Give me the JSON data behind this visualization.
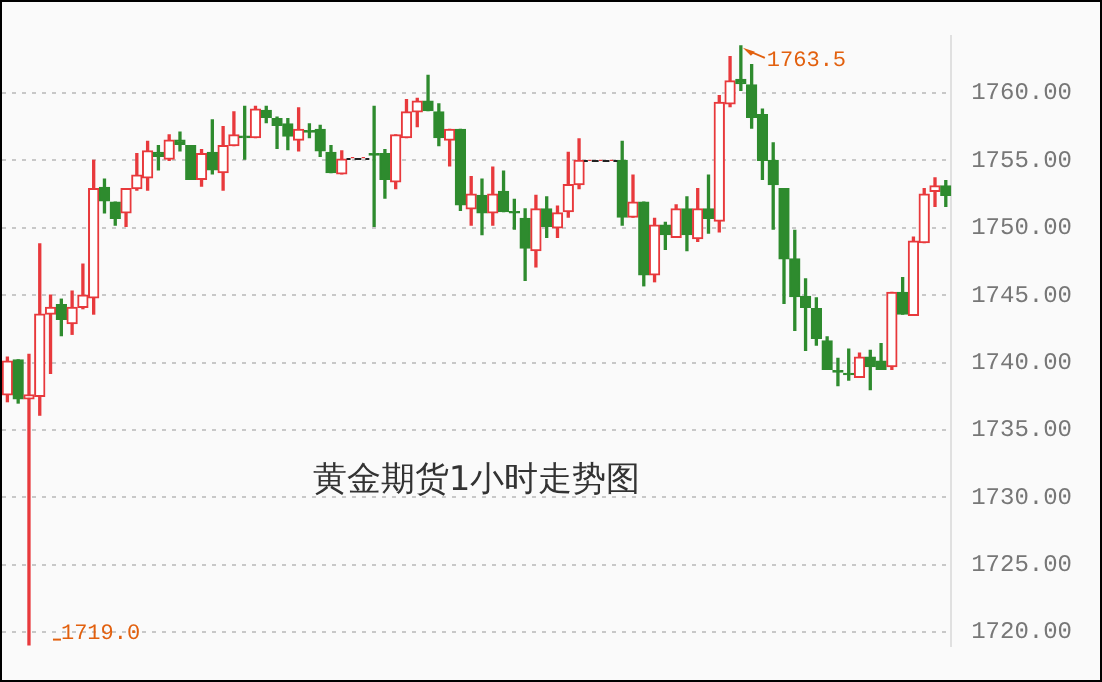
{
  "chart_data": {
    "type": "candlestick",
    "categories": [
      null,
      null,
      null,
      null,
      null,
      null,
      null,
      null,
      null,
      null,
      null,
      null,
      null,
      null,
      null,
      null,
      null,
      null,
      null,
      null,
      null,
      null,
      null,
      null,
      null,
      null,
      null,
      null,
      null,
      null,
      null,
      null,
      null,
      null,
      null,
      null,
      null,
      null,
      null,
      null,
      null,
      null,
      null,
      null,
      null,
      null,
      null,
      null,
      null,
      null,
      null,
      null,
      null,
      null,
      null,
      null,
      null,
      null,
      null,
      null,
      null,
      null,
      null,
      null,
      null,
      null,
      null,
      null,
      null,
      null,
      null,
      null,
      null,
      null,
      null,
      null,
      null,
      null,
      null,
      null,
      null,
      null,
      null,
      null,
      null,
      null,
      null,
      null
    ],
    "ohlc": [
      [
        1737.6,
        1740.4,
        1737.1,
        1740.1
      ],
      [
        1740.2,
        1740.2,
        1737.0,
        1737.3
      ],
      [
        1737.3,
        1740.6,
        1719.0,
        1737.6
      ],
      [
        1737.5,
        1748.8,
        1736.1,
        1743.6
      ],
      [
        1743.6,
        1745.0,
        1739.2,
        1744.1
      ],
      [
        1744.3,
        1744.7,
        1742.0,
        1743.2
      ],
      [
        1742.9,
        1745.3,
        1742.1,
        1744.1
      ],
      [
        1744.1,
        1747.3,
        1744.0,
        1745.0
      ],
      [
        1744.8,
        1755.0,
        1743.6,
        1752.9
      ],
      [
        1753.0,
        1753.6,
        1751.1,
        1752.0
      ],
      [
        1751.9,
        1751.9,
        1750.2,
        1750.7
      ],
      [
        1751.1,
        1752.9,
        1750.1,
        1752.9
      ],
      [
        1752.9,
        1755.5,
        1752.8,
        1753.9
      ],
      [
        1753.7,
        1756.4,
        1752.8,
        1755.7
      ],
      [
        1755.6,
        1756.1,
        1754.3,
        1755.3
      ],
      [
        1755.1,
        1756.9,
        1755.0,
        1756.5
      ],
      [
        1756.5,
        1757.1,
        1755.7,
        1756.2
      ],
      [
        1756.1,
        1756.1,
        1753.6,
        1753.6
      ],
      [
        1753.6,
        1755.8,
        1753.1,
        1755.5
      ],
      [
        1755.6,
        1758.0,
        1754.0,
        1754.3
      ],
      [
        1754.1,
        1757.5,
        1752.8,
        1756.1
      ],
      [
        1756.1,
        1758.6,
        1756.1,
        1756.9
      ],
      [
        1756.8,
        1759.0,
        1755.1,
        1756.7
      ],
      [
        1756.7,
        1759.0,
        1756.7,
        1758.8
      ],
      [
        1758.7,
        1759.0,
        1757.8,
        1758.2
      ],
      [
        1758.1,
        1758.2,
        1755.9,
        1757.6
      ],
      [
        1757.7,
        1758.1,
        1755.8,
        1756.8
      ],
      [
        1756.5,
        1758.9,
        1755.7,
        1757.3
      ],
      [
        1757.2,
        1757.7,
        1756.7,
        1757.1
      ],
      [
        1757.3,
        1757.6,
        1755.3,
        1755.7
      ],
      [
        1755.6,
        1756.1,
        1754.1,
        1754.1
      ],
      [
        1754.0,
        1755.7,
        1754.0,
        1755.1
      ],
      [
        1755.2,
        1755.2,
        1755.2,
        1755.2
      ],
      [
        1755.2,
        1755.2,
        1755.2,
        1755.2
      ],
      [
        1755.5,
        1759.0,
        1750.1,
        1755.4
      ],
      [
        1755.5,
        1755.8,
        1752.2,
        1753.6
      ],
      [
        1753.4,
        1756.9,
        1752.9,
        1756.9
      ],
      [
        1756.7,
        1759.5,
        1756.7,
        1758.6
      ],
      [
        1758.6,
        1759.6,
        1757.5,
        1759.4
      ],
      [
        1759.4,
        1761.3,
        1758.7,
        1758.7
      ],
      [
        1758.6,
        1759.2,
        1756.1,
        1756.7
      ],
      [
        1756.5,
        1757.3,
        1754.6,
        1757.3
      ],
      [
        1757.3,
        1757.3,
        1751.3,
        1751.7
      ],
      [
        1751.4,
        1753.8,
        1750.2,
        1752.5
      ],
      [
        1752.4,
        1753.6,
        1749.5,
        1751.1
      ],
      [
        1751.1,
        1754.5,
        1750.2,
        1752.5
      ],
      [
        1752.7,
        1754.2,
        1751.2,
        1751.2
      ],
      [
        1751.2,
        1752.1,
        1749.9,
        1751.1
      ],
      [
        1750.7,
        1751.4,
        1746.1,
        1748.5
      ],
      [
        1748.3,
        1752.4,
        1747.1,
        1751.4
      ],
      [
        1751.4,
        1752.3,
        1749.3,
        1750.1
      ],
      [
        1750.0,
        1751.6,
        1749.3,
        1751.1
      ],
      [
        1751.2,
        1755.6,
        1750.8,
        1753.2
      ],
      [
        1753.2,
        1756.6,
        1752.9,
        1755.0
      ],
      [
        1755.0,
        1755.0,
        1755.0,
        1755.0
      ],
      [
        1755.0,
        1755.0,
        1755.0,
        1755.0
      ],
      [
        1755.0,
        1755.0,
        1755.0,
        1755.0
      ],
      [
        1755.0,
        1756.4,
        1750.2,
        1750.8
      ],
      [
        1750.8,
        1753.9,
        1750.8,
        1751.9
      ],
      [
        1751.9,
        1751.9,
        1745.7,
        1746.5
      ],
      [
        1746.5,
        1750.7,
        1746.0,
        1750.2
      ],
      [
        1750.2,
        1750.4,
        1748.4,
        1749.5
      ],
      [
        1749.3,
        1751.7,
        1749.3,
        1751.4
      ],
      [
        1751.4,
        1752.3,
        1748.3,
        1749.5
      ],
      [
        1749.2,
        1752.9,
        1749.0,
        1751.4
      ],
      [
        1751.4,
        1753.9,
        1749.6,
        1750.7
      ],
      [
        1750.5,
        1759.8,
        1749.7,
        1759.3
      ],
      [
        1759.2,
        1762.7,
        1759.0,
        1760.9
      ],
      [
        1761.0,
        1763.5,
        1760.2,
        1760.7
      ],
      [
        1760.6,
        1762.1,
        1757.4,
        1758.2
      ],
      [
        1758.4,
        1758.8,
        1753.6,
        1755.0
      ],
      [
        1755.0,
        1756.3,
        1749.9,
        1753.2
      ],
      [
        1752.9,
        1752.9,
        1744.4,
        1747.7
      ],
      [
        1747.7,
        1749.8,
        1742.4,
        1744.9
      ],
      [
        1744.9,
        1746.2,
        1740.9,
        1744.1
      ],
      [
        1744.0,
        1744.8,
        1741.3,
        1741.8
      ],
      [
        1741.6,
        1741.9,
        1739.5,
        1739.5
      ],
      [
        1739.4,
        1740.3,
        1738.3,
        1739.3
      ],
      [
        1739.2,
        1741.0,
        1738.7,
        1739.1
      ],
      [
        1738.9,
        1740.7,
        1738.9,
        1740.4
      ],
      [
        1740.4,
        1740.9,
        1738.0,
        1739.7
      ],
      [
        1740.1,
        1741.4,
        1739.5,
        1739.5
      ],
      [
        1739.7,
        1745.2,
        1739.5,
        1745.2
      ],
      [
        1745.2,
        1746.3,
        1743.6,
        1743.6
      ],
      [
        1743.5,
        1749.3,
        1743.5,
        1749.0
      ],
      [
        1748.9,
        1752.9,
        1748.9,
        1752.5
      ],
      [
        1752.7,
        1753.7,
        1751.6,
        1753.1
      ],
      [
        1753.1,
        1753.5,
        1751.6,
        1752.4
      ]
    ],
    "ylim": [
      1719.0,
      1764.2
    ],
    "yticks": [
      {
        "value": 1720,
        "label": "1720.00"
      },
      {
        "value": 1725,
        "label": "1725.00"
      },
      {
        "value": 1730,
        "label": "1730.00"
      },
      {
        "value": 1735,
        "label": "1735.00"
      },
      {
        "value": 1740,
        "label": "1740.00"
      },
      {
        "value": 1745,
        "label": "1745.00"
      },
      {
        "value": 1750,
        "label": "1750.00"
      },
      {
        "value": 1755,
        "label": "1755.00"
      },
      {
        "value": 1760,
        "label": "1760.00"
      }
    ],
    "grid": "y",
    "legend": false,
    "tick_labels": "y",
    "annotations": [
      "1763.5",
      "1719.0",
      "黄金期货1小时走势图"
    ]
  }
}
